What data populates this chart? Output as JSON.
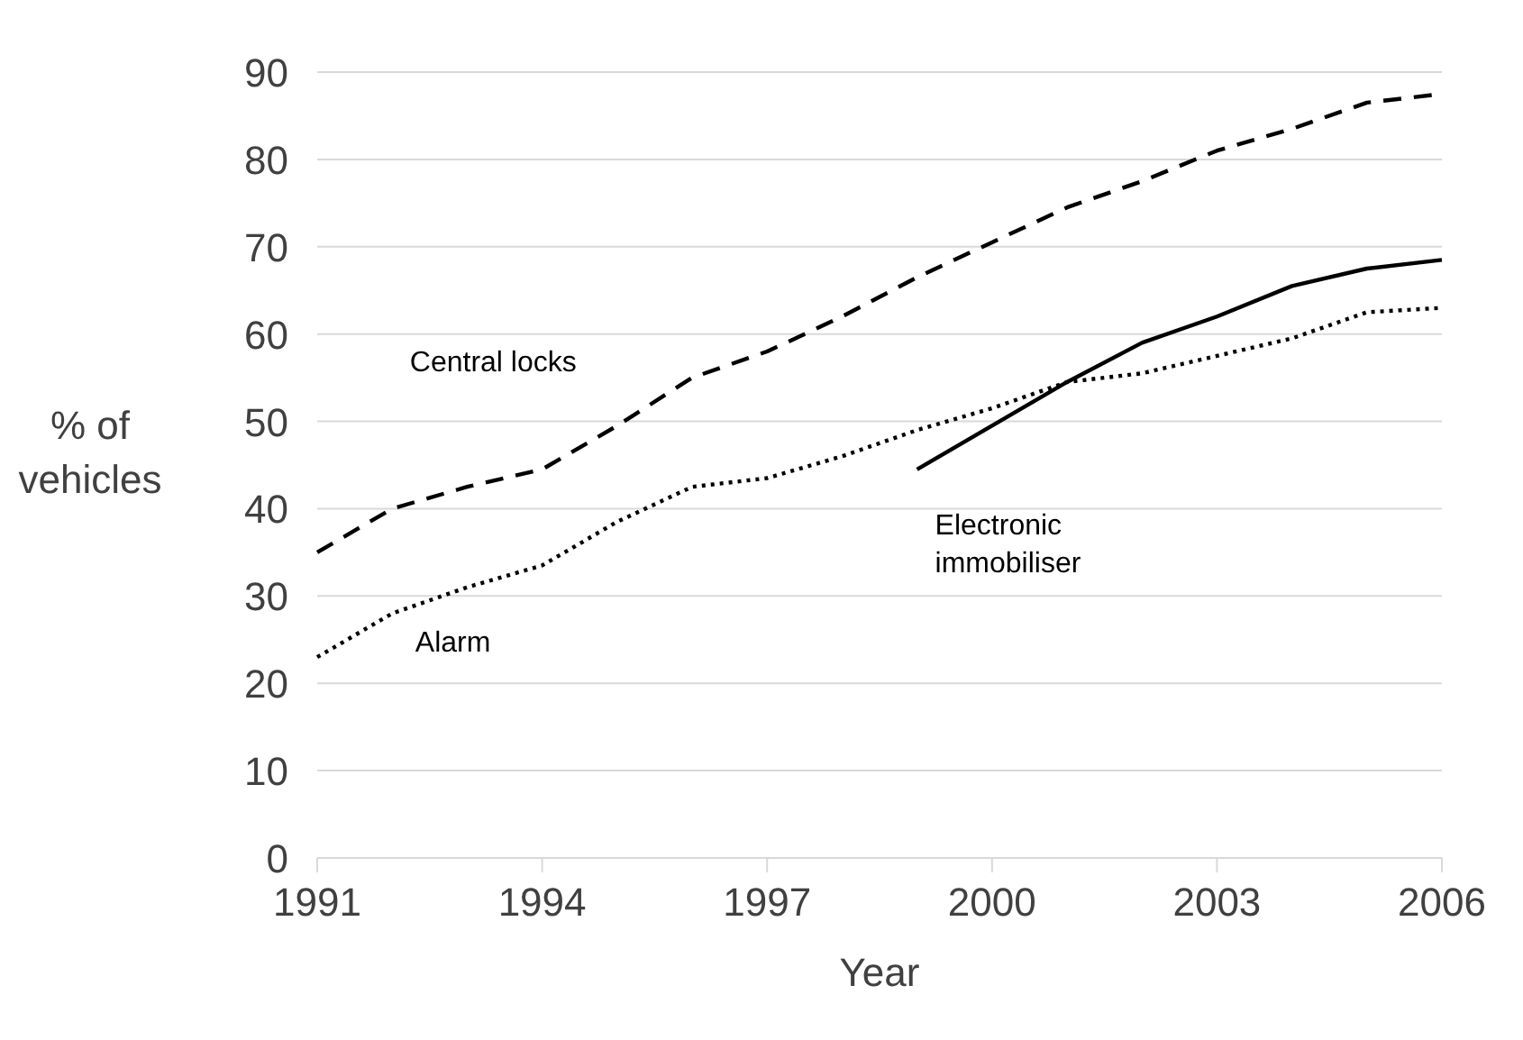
{
  "chart_data": {
    "type": "line",
    "xlabel": "Year",
    "ylabel": "% of vehicles",
    "xlim": [
      1991,
      2006
    ],
    "xticks": [
      1991,
      1994,
      1997,
      2000,
      2003,
      2006
    ],
    "ylim": [
      0,
      90
    ],
    "yticks": [
      0,
      10,
      20,
      30,
      40,
      50,
      60,
      70,
      80,
      90
    ],
    "grid": "y",
    "series": [
      {
        "name": "Central locks",
        "color": "#000000",
        "line_style": "dashed",
        "x": [
          1991,
          1992,
          1993,
          1994,
          1995,
          1996,
          1997,
          1998,
          1999,
          2000,
          2001,
          2002,
          2003,
          2004,
          2005,
          2006
        ],
        "values": [
          35,
          40,
          42.5,
          44.5,
          49.5,
          55,
          58,
          62,
          66.5,
          70.5,
          74.5,
          77.5,
          81,
          83.5,
          86.5,
          87.5
        ]
      },
      {
        "name": "Alarm",
        "color": "#000000",
        "line_style": "dotted",
        "x": [
          1991,
          1992,
          1993,
          1994,
          1995,
          1996,
          1997,
          1998,
          1999,
          2000,
          2001,
          2002,
          2003,
          2004,
          2005,
          2006
        ],
        "values": [
          23,
          28,
          31,
          33.5,
          38.5,
          42.5,
          43.5,
          46,
          49,
          51.5,
          54.5,
          55.5,
          57.5,
          59.5,
          62.5,
          63
        ]
      },
      {
        "name": "Electronic immobiliser",
        "color": "#000000",
        "line_style": "solid",
        "x": [
          1999,
          2000,
          2001,
          2002,
          2003,
          2004,
          2005,
          2006
        ],
        "values": [
          44.5,
          49.5,
          54.5,
          59,
          62,
          65.5,
          67.5,
          68.5
        ]
      }
    ]
  }
}
